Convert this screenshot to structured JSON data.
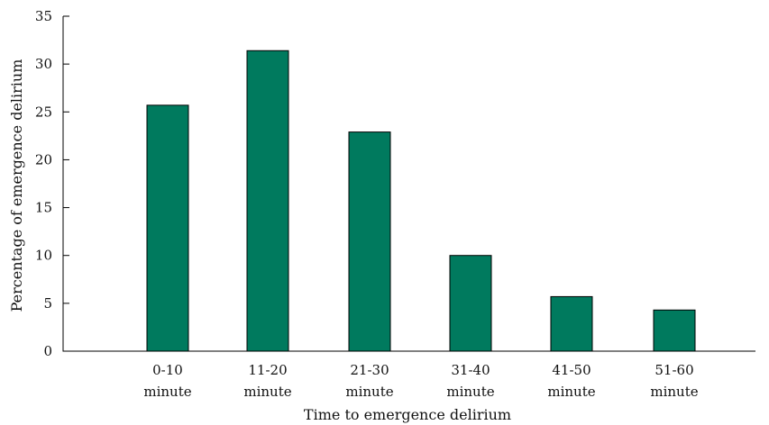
{
  "chart_data": {
    "type": "bar",
    "categories": [
      "0-10 minute",
      "11-20 minute",
      "21-30 minute",
      "31-40 minute",
      "41-50 minute",
      "51-60 minute"
    ],
    "category_lines": [
      [
        "0-10",
        "minute"
      ],
      [
        "11-20",
        "minute"
      ],
      [
        "21-30",
        "minute"
      ],
      [
        "31-40",
        "minute"
      ],
      [
        "41-50",
        "minute"
      ],
      [
        "51-60",
        "minute"
      ]
    ],
    "values": [
      25.7,
      31.4,
      22.9,
      10.0,
      5.7,
      4.3
    ],
    "title": "",
    "xlabel": "Time to emergence delirium",
    "ylabel": "Percentage of emergence delirium",
    "ylim": [
      0,
      35
    ],
    "yticks": [
      0,
      5,
      10,
      15,
      20,
      25,
      30,
      35
    ],
    "bar_color": "#007a5e",
    "grid": false,
    "legend": "none"
  }
}
